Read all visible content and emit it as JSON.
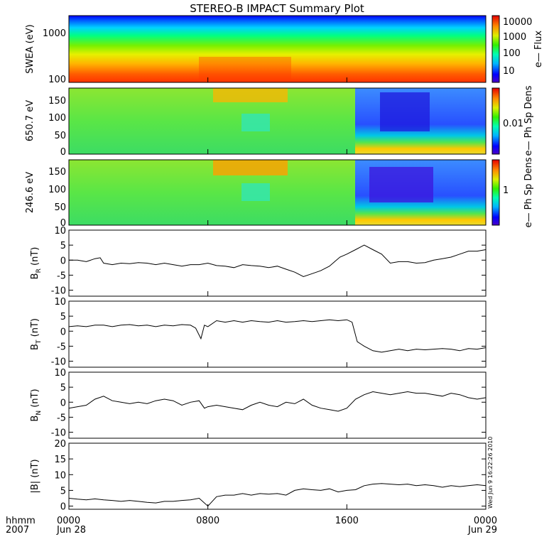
{
  "title": "STEREO-B IMPACT Summary Plot",
  "stamp": "Wed Jun  9 16:22:26 2010",
  "colors": {
    "spectral": [
      "#4a00c8",
      "#0000ff",
      "#0064ff",
      "#00c8ff",
      "#00e6c8",
      "#00ff6e",
      "#32e632",
      "#96f000",
      "#dcf000",
      "#ffc800",
      "#ff7800",
      "#ff2800",
      "#e60000"
    ]
  },
  "chart_data": [
    {
      "type": "heatmap",
      "panel": "swea",
      "ylabel": "SWEA (eV)",
      "yticks": [
        "1000",
        "100"
      ],
      "scale": "log",
      "colorbar_label": "e— Flux",
      "colorbar_ticks": [
        "10000",
        "1000",
        "100",
        "10"
      ]
    },
    {
      "type": "heatmap",
      "panel": "pad650",
      "ylabel": "650.7 eV",
      "yticks": [
        "150",
        "100",
        "50",
        "0"
      ],
      "ylim": [
        0,
        180
      ],
      "colorbar_label": "e— Ph Sp Dens",
      "colorbar_ticks": [
        "0.01"
      ]
    },
    {
      "type": "heatmap",
      "panel": "pad246",
      "ylabel": "246.6 eV",
      "yticks": [
        "150",
        "100",
        "50",
        "0"
      ],
      "ylim": [
        0,
        180
      ],
      "colorbar_label": "e— Ph Sp Dens",
      "colorbar_ticks": [
        "1"
      ]
    },
    {
      "type": "line",
      "panel": "br",
      "ylabel_main": "B",
      "ylabel_sub": "R",
      "ylabel_unit": " (nT)",
      "ylim": [
        -12,
        10
      ],
      "yticks": [
        "10",
        "5",
        "0",
        "-5",
        "-10"
      ],
      "x": [
        0,
        0.5,
        1,
        1.5,
        1.8,
        2,
        2.5,
        3,
        3.5,
        4,
        4.5,
        5,
        5.5,
        6,
        6.5,
        7,
        7.5,
        8,
        8.5,
        9,
        9.5,
        10,
        10.5,
        11,
        11.5,
        12,
        12.5,
        13,
        13.5,
        14,
        14.5,
        15,
        15.3,
        15.6,
        16,
        16.5,
        17,
        17.5,
        18,
        18.5,
        19,
        19.5,
        20,
        20.5,
        21,
        21.5,
        22,
        22.5,
        23,
        23.5,
        24
      ],
      "y": [
        0,
        0,
        -0.5,
        0.5,
        0.8,
        -1,
        -1.5,
        -1,
        -1.2,
        -0.8,
        -1,
        -1.5,
        -1,
        -1.5,
        -2,
        -1.5,
        -1.5,
        -1,
        -1.8,
        -2,
        -2.5,
        -1.5,
        -1.8,
        -2,
        -2.5,
        -2,
        -3,
        -4,
        -5.5,
        -4.5,
        -3.5,
        -2,
        -0.5,
        1,
        2,
        3.5,
        5,
        3.5,
        2,
        -1,
        -0.5,
        -0.5,
        -1,
        -0.8,
        0,
        0.5,
        1,
        2,
        3,
        3,
        3.5
      ]
    },
    {
      "type": "line",
      "panel": "bt",
      "ylabel_main": "B",
      "ylabel_sub": "T",
      "ylabel_unit": " (nT)",
      "ylim": [
        -12,
        10
      ],
      "yticks": [
        "10",
        "5",
        "0",
        "-5",
        "-10"
      ],
      "x": [
        0,
        0.5,
        1,
        1.5,
        2,
        2.5,
        3,
        3.5,
        4,
        4.5,
        5,
        5.5,
        6,
        6.5,
        7,
        7.3,
        7.6,
        7.8,
        8,
        8.5,
        9,
        9.5,
        10,
        10.5,
        11,
        11.5,
        12,
        12.5,
        13,
        13.5,
        14,
        14.5,
        15,
        15.5,
        16,
        16.3,
        16.6,
        17,
        17.5,
        18,
        18.5,
        19,
        19.5,
        20,
        20.5,
        21,
        21.5,
        22,
        22.5,
        23,
        23.5,
        24
      ],
      "y": [
        1.5,
        1.8,
        1.5,
        2,
        2,
        1.5,
        2,
        2.2,
        1.8,
        2,
        1.5,
        2,
        1.8,
        2.2,
        2,
        1,
        -2.5,
        2,
        1.5,
        3.5,
        3,
        3.5,
        3,
        3.5,
        3.2,
        3,
        3.5,
        3,
        3.2,
        3.5,
        3.2,
        3.5,
        3.8,
        3.5,
        3.8,
        3,
        -3.5,
        -5,
        -6.5,
        -7,
        -6.5,
        -6,
        -6.5,
        -6,
        -6.2,
        -6,
        -5.8,
        -6,
        -6.5,
        -5.8,
        -6,
        -5.5
      ]
    },
    {
      "type": "line",
      "panel": "bn",
      "ylabel_main": "B",
      "ylabel_sub": "N",
      "ylabel_unit": " (nT)",
      "ylim": [
        -12,
        10
      ],
      "yticks": [
        "10",
        "5",
        "0",
        "-5",
        "-10"
      ],
      "x": [
        0,
        0.5,
        1,
        1.5,
        2,
        2.5,
        3,
        3.5,
        4,
        4.5,
        5,
        5.5,
        6,
        6.5,
        7,
        7.5,
        7.8,
        8,
        8.5,
        9,
        9.5,
        10,
        10.5,
        11,
        11.5,
        12,
        12.5,
        13,
        13.5,
        14,
        14.5,
        15,
        15.5,
        16,
        16.5,
        17,
        17.5,
        18,
        18.5,
        19,
        19.5,
        20,
        20.5,
        21,
        21.5,
        22,
        22.5,
        23,
        23.5,
        24
      ],
      "y": [
        -2,
        -1.5,
        -1,
        1,
        2,
        0.5,
        0,
        -0.5,
        0,
        -0.5,
        0.5,
        1,
        0.5,
        -1,
        0,
        0.5,
        -2,
        -1.5,
        -1,
        -1.5,
        -2,
        -2.5,
        -1,
        0,
        -1,
        -1.5,
        0,
        -0.5,
        1,
        -1,
        -2,
        -2.5,
        -3,
        -2,
        1,
        2.5,
        3.5,
        3,
        2.5,
        3,
        3.5,
        3,
        3,
        2.5,
        2,
        3,
        2.5,
        1.5,
        1,
        1.5
      ]
    },
    {
      "type": "line",
      "panel": "bmag",
      "ylabel_main": "|B| (nT)",
      "ylim": [
        -1,
        20
      ],
      "yticks": [
        "20",
        "15",
        "10",
        "5",
        "0"
      ],
      "x": [
        0,
        0.5,
        1,
        1.5,
        2,
        2.5,
        3,
        3.5,
        4,
        4.5,
        5,
        5.5,
        6,
        6.5,
        7,
        7.5,
        8,
        8.5,
        9,
        9.5,
        10,
        10.5,
        11,
        11.5,
        12,
        12.5,
        13,
        13.5,
        14,
        14.5,
        15,
        15.5,
        16,
        16.5,
        17,
        17.5,
        18,
        18.5,
        19,
        19.5,
        20,
        20.5,
        21,
        21.5,
        22,
        22.5,
        23,
        23.5,
        24
      ],
      "y": [
        2.5,
        2.2,
        2,
        2.3,
        2,
        1.8,
        1.5,
        1.8,
        1.5,
        1.2,
        1,
        1.5,
        1.5,
        1.8,
        2,
        2.5,
        0,
        3,
        3.5,
        3.5,
        4,
        3.5,
        4,
        3.8,
        4,
        3.5,
        5,
        5.5,
        5.2,
        5,
        5.5,
        4.5,
        5,
        5.2,
        6.5,
        7,
        7.2,
        7,
        6.8,
        7,
        6.5,
        6.8,
        6.5,
        6,
        6.5,
        6.2,
        6.5,
        6.8,
        6.5
      ]
    }
  ],
  "xaxis": {
    "left_labels": [
      "hhmm",
      "2007"
    ],
    "ticks": [
      {
        "hour": 0,
        "label": "0000",
        "date": "Jun 28"
      },
      {
        "hour": 8,
        "label": "0800",
        "date": ""
      },
      {
        "hour": 16,
        "label": "1600",
        "date": ""
      },
      {
        "hour": 24,
        "label": "0000",
        "date": "Jun 29"
      }
    ]
  }
}
